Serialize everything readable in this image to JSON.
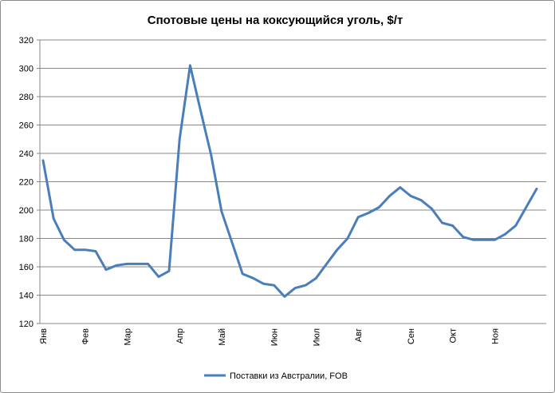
{
  "chart_data": {
    "type": "line",
    "title": "Спотовые цены на коксующийся уголь, $/т",
    "xlabel": "",
    "ylabel": "",
    "ylim": [
      120,
      320
    ],
    "yticks": [
      120,
      140,
      160,
      180,
      200,
      220,
      240,
      260,
      280,
      300,
      320
    ],
    "grid": true,
    "legend_position": "bottom",
    "month_labels": [
      {
        "label": "Янв",
        "index": 0
      },
      {
        "label": "Фев",
        "index": 4
      },
      {
        "label": "Мар",
        "index": 8
      },
      {
        "label": "Апр",
        "index": 13
      },
      {
        "label": "Май",
        "index": 17
      },
      {
        "label": "Июн",
        "index": 22
      },
      {
        "label": "Июл",
        "index": 26
      },
      {
        "label": "Авг",
        "index": 30
      },
      {
        "label": "Сен",
        "index": 35
      },
      {
        "label": "Окт",
        "index": 39
      },
      {
        "label": "Ноя",
        "index": 43
      }
    ],
    "series": [
      {
        "name": "Поставки из Австралии, FOB",
        "color": "#4a7ebb",
        "values": [
          235,
          194,
          179,
          172,
          172,
          171,
          158,
          161,
          162,
          162,
          162,
          153,
          157,
          250,
          302,
          270,
          239,
          199,
          177,
          155,
          152,
          148,
          147,
          139,
          145,
          147,
          152,
          162,
          172,
          180,
          195,
          198,
          202,
          210,
          216,
          210,
          207,
          201,
          191,
          189,
          181,
          179,
          179,
          179,
          183,
          189,
          202,
          215
        ]
      }
    ]
  }
}
